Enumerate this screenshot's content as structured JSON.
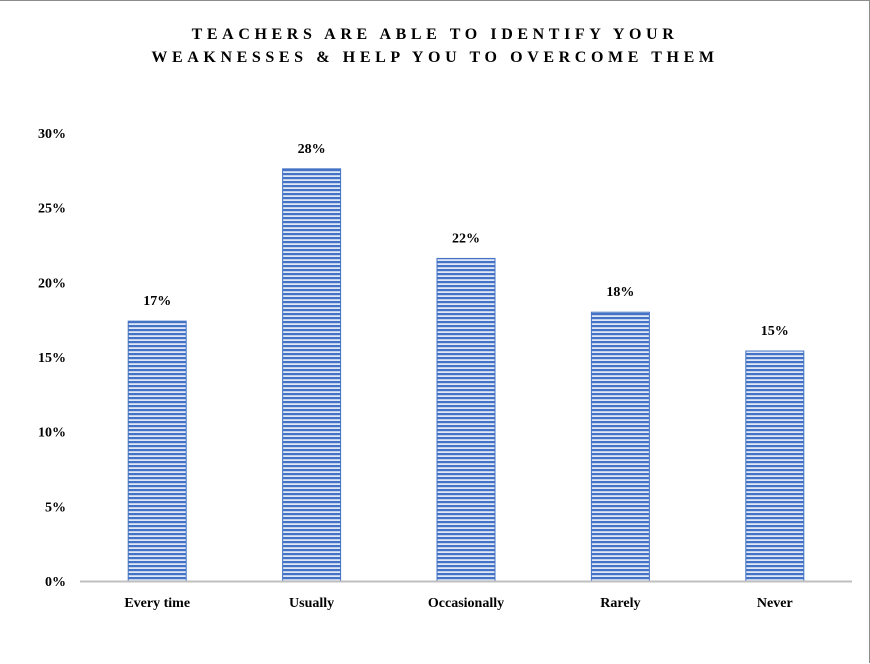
{
  "chart_data": {
    "type": "bar",
    "title_lines": [
      "TEACHERS ARE ABLE TO IDENTIFY YOUR",
      "WEAKNESSES & HELP YOU TO OVERCOME THEM"
    ],
    "categories": [
      "Every time",
      "Usually",
      "Occasionally",
      "Rarely",
      "Never"
    ],
    "values": [
      17.4,
      27.6,
      21.6,
      18.0,
      15.4
    ],
    "data_labels": [
      "17%",
      "28%",
      "22%",
      "18%",
      "15%"
    ],
    "y_ticks": [
      {
        "value": 0,
        "label": "0%"
      },
      {
        "value": 5,
        "label": "5%"
      },
      {
        "value": 10,
        "label": "10%"
      },
      {
        "value": 15,
        "label": "15%"
      },
      {
        "value": 20,
        "label": "20%"
      },
      {
        "value": 25,
        "label": "25%"
      },
      {
        "value": 30,
        "label": "30%"
      }
    ],
    "ylim": [
      0,
      30
    ],
    "xlabel": "",
    "ylabel": "",
    "grid": false,
    "legend": "none",
    "bar_color": "#4472c4",
    "bar_pattern": "horizontal-stripes"
  }
}
